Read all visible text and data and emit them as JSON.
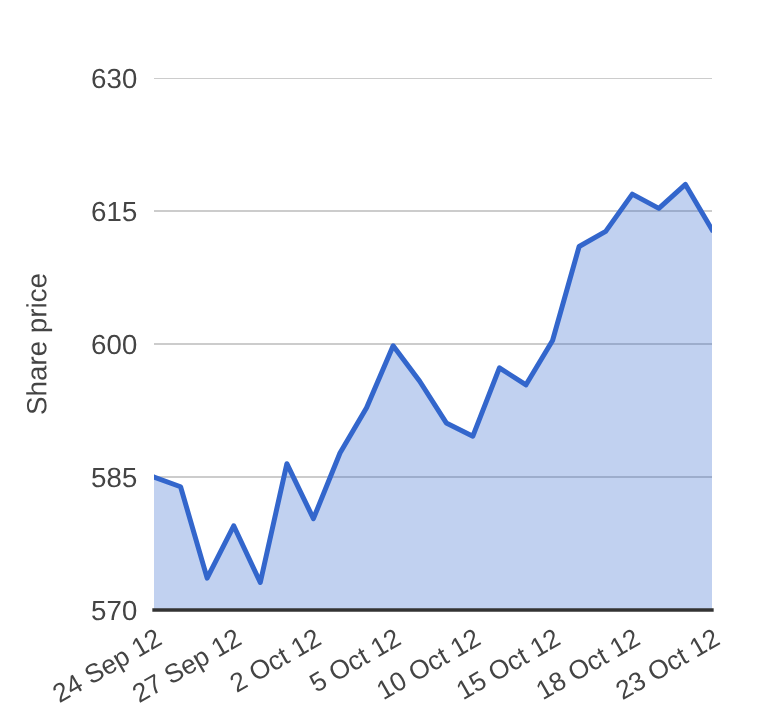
{
  "chart_data": {
    "type": "area",
    "ylabel": "Share price",
    "categories": [
      "24 Sep 12",
      null,
      null,
      "27 Sep 12",
      null,
      null,
      "2 Oct 12",
      null,
      null,
      "5 Oct 12",
      null,
      null,
      "10 Oct 12",
      null,
      null,
      "15 Oct 12",
      null,
      null,
      "18 Oct 12",
      null,
      null,
      "23 Oct 12"
    ],
    "series": [
      {
        "color": "#3366cc",
        "values": [
          585.0,
          583.9,
          573.6,
          579.5,
          573.1,
          586.5,
          580.3,
          587.7,
          592.8,
          599.8,
          595.8,
          591.1,
          589.6,
          597.3,
          595.4,
          600.4,
          611.0,
          612.7,
          616.9,
          615.3,
          618.0,
          612.9
        ]
      }
    ],
    "ylim": [
      570,
      630
    ],
    "yticks": [
      570,
      585,
      600,
      615,
      630
    ],
    "grid": "y",
    "legend": false,
    "marker": "none",
    "line_style": "solid"
  }
}
